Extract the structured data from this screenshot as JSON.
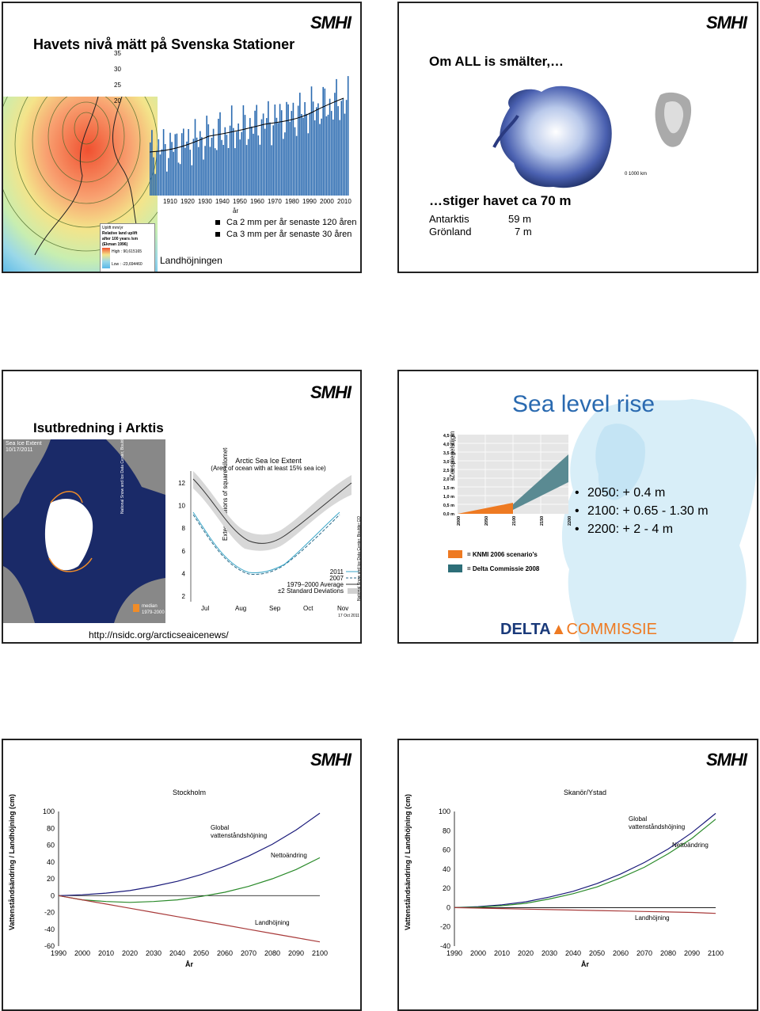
{
  "logo_text": "SMHI",
  "slide1": {
    "title": "Havets nivå mätt på Svenska Stationer",
    "chart_axis_x_label": "år",
    "chart_data": {
      "type": "bar",
      "x_ticks": [
        "1910",
        "1920",
        "1930",
        "1940",
        "1950",
        "1960",
        "1970",
        "1980",
        "1990",
        "2000",
        "2010"
      ],
      "y_ticks": [
        "35",
        "30",
        "25",
        "20"
      ],
      "ylim": [
        0,
        35
      ]
    },
    "legend": {
      "line1": "Uplift mm/yr",
      "line2": "Relative land uplift",
      "line3": "after 100 years /sm",
      "line4": "(Ekman 1996)",
      "high": "High : 90,615165",
      "low": "Low : -23,694460"
    },
    "bullets": [
      "Ca 2 mm per år senaste 120 åren",
      "Ca 3 mm per år senaste 30 åren"
    ],
    "caption": "Landhöjningen"
  },
  "slide2": {
    "title": "Om ALL is smälter,…",
    "subtitle": "…stiger havet ca 70 m",
    "rows": [
      {
        "name": "Antarktis",
        "value": "59 m"
      },
      {
        "name": "Grönland",
        "value": "7 m"
      }
    ],
    "scale_label": "0     1000 km"
  },
  "slide3": {
    "title": "Isutbredning i Arktis",
    "map_caption_line1": "Sea Ice Extent",
    "map_caption_line2": "10/17/2011",
    "map_side_credit": "National Snow and Ice Data Center, Boulder CO",
    "median_label1": "median",
    "median_label2": "1979-2000",
    "chart_side_credit": "National Snow and Ice Data Center, Boulder CO",
    "chart_date": "17 Oct 2011",
    "url": "http://nsidc.org/arcticseaicenews/",
    "chart_data": {
      "type": "line",
      "title": "Arctic Sea Ice Extent",
      "subtitle": "(Area of ocean with at least 15% sea ice)",
      "ylabel": "Extent (millions of square kilometers)",
      "y_ticks": [
        "12",
        "10",
        "8",
        "6",
        "4",
        "2"
      ],
      "x_ticks": [
        "Jul",
        "Aug",
        "Sep",
        "Oct",
        "Nov"
      ],
      "ylim": [
        2,
        13
      ],
      "series": [
        {
          "name": "2011",
          "color": "#3aa6c8",
          "values": [
            9.0,
            6.9,
            5.3,
            4.5,
            5.2,
            6.0,
            7.4,
            8.7
          ]
        },
        {
          "name": "2007",
          "color": "#2a6a88",
          "values": [
            8.8,
            6.6,
            5.0,
            4.3,
            4.6,
            5.7,
            7.2,
            8.4
          ]
        },
        {
          "name": "1979–2000 Average",
          "color": "#333333",
          "values": [
            10.5,
            9.2,
            7.8,
            7.0,
            7.2,
            8.2,
            9.8,
            11.2
          ]
        },
        {
          "name": "±2 Standard Deviations",
          "color": "#d0d0d0",
          "values": []
        }
      ]
    }
  },
  "slide4": {
    "title": "Sea level rise",
    "bullets": [
      "2050: + 0.4 m",
      "2100: + 0.65 -  1.30 m",
      "2200: + 2 -  4 m"
    ],
    "chart_ylabel": "Zeespiegelstijging (m)",
    "chart_y_ticks": [
      "4,5 m",
      "4,0 m",
      "3,5 m",
      "3,0 m",
      "2,5 m",
      "2,0 m",
      "1,5 m",
      "1,0 m",
      "0,5 m",
      "0,0 m"
    ],
    "chart_x_ticks": [
      "2000",
      "2050",
      "2100",
      "2150",
      "2200"
    ],
    "legend": [
      {
        "label": "= KNMI 2006 scenario's",
        "color": "#ee7a22"
      },
      {
        "label": "= Delta Commissie 2008",
        "color": "#2d6e78"
      }
    ],
    "logo_left": "DELTA",
    "logo_right": "COMMISSIE"
  },
  "slide5": {
    "chart_data": {
      "type": "line",
      "title": "Stockholm",
      "xlabel": "År",
      "ylabel": "Vattenståndsändring / Landhöjning (cm)",
      "x": [
        1990,
        2000,
        2010,
        2020,
        2030,
        2040,
        2050,
        2060,
        2070,
        2080,
        2090,
        2100
      ],
      "ylim": [
        -60,
        100
      ],
      "y_ticks": [
        "100",
        "80",
        "60",
        "40",
        "20",
        "0",
        "-20",
        "-40",
        "-60"
      ],
      "series": [
        {
          "name": "Global vattenståndshöjning",
          "color": "#1a1a7a",
          "values": [
            0,
            1,
            3,
            6,
            11,
            17,
            25,
            35,
            47,
            61,
            78,
            98
          ]
        },
        {
          "name": "Nettoändring",
          "color": "#2a8a2a",
          "values": [
            0,
            -5,
            -7,
            -8,
            -7,
            -5,
            -1,
            4,
            11,
            20,
            31,
            45
          ]
        },
        {
          "name": "Landhöjning",
          "color": "#a83a3a",
          "values": [
            0,
            -5,
            -10,
            -15,
            -20,
            -25,
            -30,
            -35,
            -40,
            -45,
            -50,
            -55
          ]
        }
      ],
      "labels": {
        "global": "Global vattenståndshöjning",
        "netto": "Nettoändring",
        "land": "Landhöjning"
      }
    }
  },
  "slide6": {
    "chart_data": {
      "type": "line",
      "title": "Skanör/Ystad",
      "xlabel": "År",
      "ylabel": "Vattenståndsändring / Landhöjning (cm)",
      "x": [
        1990,
        2000,
        2010,
        2020,
        2030,
        2040,
        2050,
        2060,
        2070,
        2080,
        2090,
        2100
      ],
      "ylim": [
        -40,
        100
      ],
      "y_ticks": [
        "100",
        "80",
        "60",
        "40",
        "20",
        "0",
        "-20",
        "-40"
      ],
      "series": [
        {
          "name": "Global vattenståndshöjning",
          "color": "#1a1a7a",
          "values": [
            0,
            1,
            3,
            6,
            11,
            17,
            25,
            35,
            47,
            61,
            78,
            98
          ]
        },
        {
          "name": "Nettoändring",
          "color": "#2a8a2a",
          "values": [
            0,
            0.5,
            2,
            4.5,
            9,
            14.5,
            21.5,
            31,
            42,
            56,
            72,
            92
          ]
        },
        {
          "name": "Landhöjning",
          "color": "#a83a3a",
          "values": [
            0,
            -0.5,
            -1,
            -1.5,
            -2,
            -2.5,
            -3,
            -3.5,
            -4,
            -4.5,
            -5,
            -6
          ]
        }
      ],
      "labels": {
        "global": "Global vattenståndshöjning",
        "netto": "Nettoändring",
        "land": "Landhöjning"
      }
    }
  }
}
